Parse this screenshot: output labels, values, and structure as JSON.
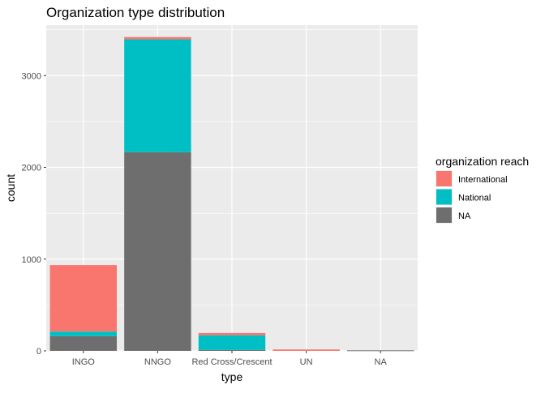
{
  "chart_data": {
    "type": "bar",
    "stacked": true,
    "title": "Organization type distribution",
    "xlabel": "type",
    "ylabel": "count",
    "categories": [
      "INGO",
      "NNGO",
      "Red Cross/Crescent",
      "UN",
      "NA"
    ],
    "series": [
      {
        "name": "International",
        "color": "#F8766D",
        "values": [
          725,
          25,
          25,
          15,
          0
        ]
      },
      {
        "name": "National",
        "color": "#00BFC4",
        "values": [
          50,
          1230,
          160,
          0,
          0
        ]
      },
      {
        "name": "NA",
        "color": "#6E6E6E",
        "values": [
          160,
          2165,
          10,
          0,
          6
        ]
      }
    ],
    "ylim": [
      0,
      3550
    ],
    "yticks": [
      0,
      1000,
      2000,
      3000
    ],
    "ytick_labels": [
      "0",
      "1000",
      "2000",
      "3000"
    ],
    "legend": {
      "title": "organization reach",
      "position": "right",
      "entries": [
        "International",
        "National",
        "NA"
      ]
    },
    "grid": true,
    "panel_background": "#EBEBEB",
    "gridline_color": "#FFFFFF"
  }
}
